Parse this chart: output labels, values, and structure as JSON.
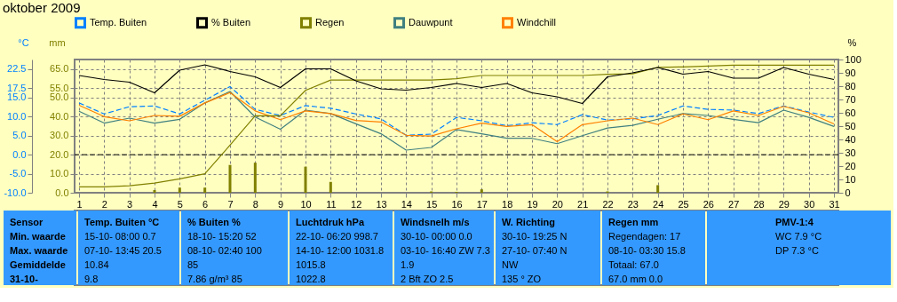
{
  "chart_data": {
    "type": "line",
    "title": "oktober 2009",
    "x": [
      1,
      2,
      3,
      4,
      5,
      6,
      7,
      8,
      9,
      10,
      11,
      12,
      13,
      14,
      15,
      16,
      17,
      18,
      19,
      20,
      21,
      22,
      23,
      24,
      25,
      26,
      27,
      28,
      29,
      30,
      31
    ],
    "xlim": [
      1,
      31
    ],
    "xticks": [
      1,
      2,
      3,
      4,
      5,
      6,
      7,
      8,
      9,
      10,
      11,
      12,
      13,
      14,
      15,
      16,
      17,
      18,
      19,
      20,
      21,
      22,
      23,
      24,
      25,
      26,
      27,
      28,
      29,
      30,
      31
    ],
    "ylabel": "°C",
    "ylim": [
      -10,
      25
    ],
    "yticks": [
      {
        "value": -10,
        "label": "-10.0"
      },
      {
        "value": -5,
        "label": "-5.0"
      },
      {
        "value": 0,
        "label": "0.0"
      },
      {
        "value": 5,
        "label": "5.0"
      },
      {
        "value": 10,
        "label": "10.0"
      },
      {
        "value": 15,
        "label": "15.0"
      },
      17.5,
      22.5
    ],
    "y3label": "mm",
    "y3lim": [
      0,
      70
    ],
    "y3ticks": [
      {
        "value": 0,
        "label": "0.0"
      },
      {
        "value": 10,
        "label": "10.0"
      },
      {
        "value": 20,
        "label": "20.0"
      },
      {
        "value": 30,
        "label": "30.0"
      },
      {
        "value": 40,
        "label": "40.0"
      },
      {
        "value": 50,
        "label": "50.0"
      },
      {
        "value": 55,
        "label": "55.0"
      },
      {
        "value": 65,
        "label": "65.0"
      }
    ],
    "y2label": "%",
    "y2lim": [
      0,
      100
    ],
    "y2ticks": [
      0,
      10,
      20,
      30,
      40,
      50,
      60,
      70,
      80,
      90,
      100
    ],
    "grid": true,
    "legend": "top",
    "series": [
      {
        "name": "Temp. Buiten",
        "color": "#0080ff",
        "axis": "y",
        "line_style": "dashed",
        "values": [
          13.6,
          10.7,
          12.6,
          12.8,
          10.7,
          14.3,
          17.9,
          11.9,
          10.3,
          12.9,
          12.2,
          10.7,
          9.4,
          5.1,
          5.4,
          9.8,
          8.9,
          7.6,
          8.4,
          7.9,
          10.5,
          9.1,
          9.4,
          10.3,
          12.8,
          11.9,
          11.7,
          10.8,
          12.8,
          11.2,
          9.8
        ]
      },
      {
        "name": "% Buiten",
        "color": "#000000",
        "axis": "y2",
        "values": [
          88,
          85,
          83,
          75,
          92,
          96,
          91,
          87,
          79,
          93,
          93,
          84,
          78,
          77,
          79,
          82,
          79,
          82,
          75,
          72,
          67,
          87,
          90,
          94,
          89,
          91,
          86,
          86,
          94,
          89,
          85
        ]
      },
      {
        "name": "Regen",
        "color": "#808000",
        "axis": "y3",
        "values": [
          3.1,
          3.1,
          3.7,
          5.1,
          7.3,
          10.0,
          25,
          40.4,
          40.4,
          53.8,
          59.2,
          59.2,
          59.2,
          59.2,
          59.2,
          59.9,
          61.6,
          61.6,
          61.6,
          61.6,
          61.6,
          62.2,
          62.5,
          65.9,
          66.1,
          66.6,
          67.0,
          67.0,
          67.0,
          67.0,
          67.0
        ]
      },
      {
        "name": "Dauwpunt",
        "color": "#408080",
        "axis": "y",
        "values": [
          11.4,
          8.3,
          9.6,
          8.3,
          9.3,
          13.6,
          16.6,
          9.9,
          6.7,
          11.7,
          10.8,
          8.1,
          5.5,
          1.2,
          1.9,
          6.6,
          5.5,
          4.3,
          4.3,
          2.9,
          5.0,
          7.0,
          7.7,
          9.3,
          10.8,
          10.3,
          9.3,
          8.4,
          11.7,
          9.8,
          7.4
        ]
      },
      {
        "name": "Windchill",
        "color": "#ff8000",
        "axis": "y",
        "values": [
          13.0,
          10.0,
          8.9,
          10.3,
          10.1,
          13.6,
          16.3,
          11.5,
          9.2,
          11.5,
          10.8,
          9.0,
          8.6,
          5.1,
          4.9,
          6.8,
          8.3,
          7.4,
          7.9,
          3.4,
          7.9,
          8.9,
          9.6,
          7.9,
          10.7,
          9.2,
          11.5,
          10.3,
          12.7,
          11.0,
          8.1
        ]
      },
      {
        "type": "bar",
        "color": "#808000",
        "axis": "y3",
        "values": [
          null,
          null,
          null,
          1.4,
          2.7,
          2.7,
          14.6,
          15.8,
          null,
          13.7,
          5.7,
          null,
          null,
          null,
          0.7,
          0.5,
          1.8,
          null,
          null,
          null,
          null,
          0.7,
          null,
          4.0,
          null,
          null,
          null,
          null,
          null,
          null,
          null
        ]
      }
    ],
    "ref_lines": [
      {
        "axis": "y",
        "value": 0,
        "color": "#000000",
        "line_style": "dashed"
      }
    ],
    "annotations": [
      "Sensor",
      "Min. waarde",
      "Max. waarde",
      "Gemiddelde",
      "31-10-",
      "Temp. Buiten °C",
      "15-10- 08:00 0.7",
      "07-10- 13:45 20.5",
      "10.84",
      "9.8",
      "% Buiten %",
      "18-10- 15:20 52",
      "08-10- 02:40 100",
      "85",
      "7.86 g/m³ 85",
      "Luchtdruk hPa",
      "22-10- 06:20 998.7",
      "14-10- 12:00 1031.8",
      "1015.8",
      "1022.8",
      "Windsnelh m/s",
      "30-10- 00:00 0.0",
      "03-10- 16:40 ZW 7.3",
      "1.9",
      "2 Bft ZO 2.5",
      "W. Richting",
      "30-10- 19:25 N",
      "27-10- 07:40 N",
      "NW",
      "135 ° ZO",
      "Regen mm",
      "Regendagen: 17",
      "08-10- 03:30 15.8",
      "Totaal: 67.0",
      "67.0 mm 0.0",
      "PMV-1:4",
      "WC 7.9 °C",
      "DP 7.3 °C"
    ]
  }
}
